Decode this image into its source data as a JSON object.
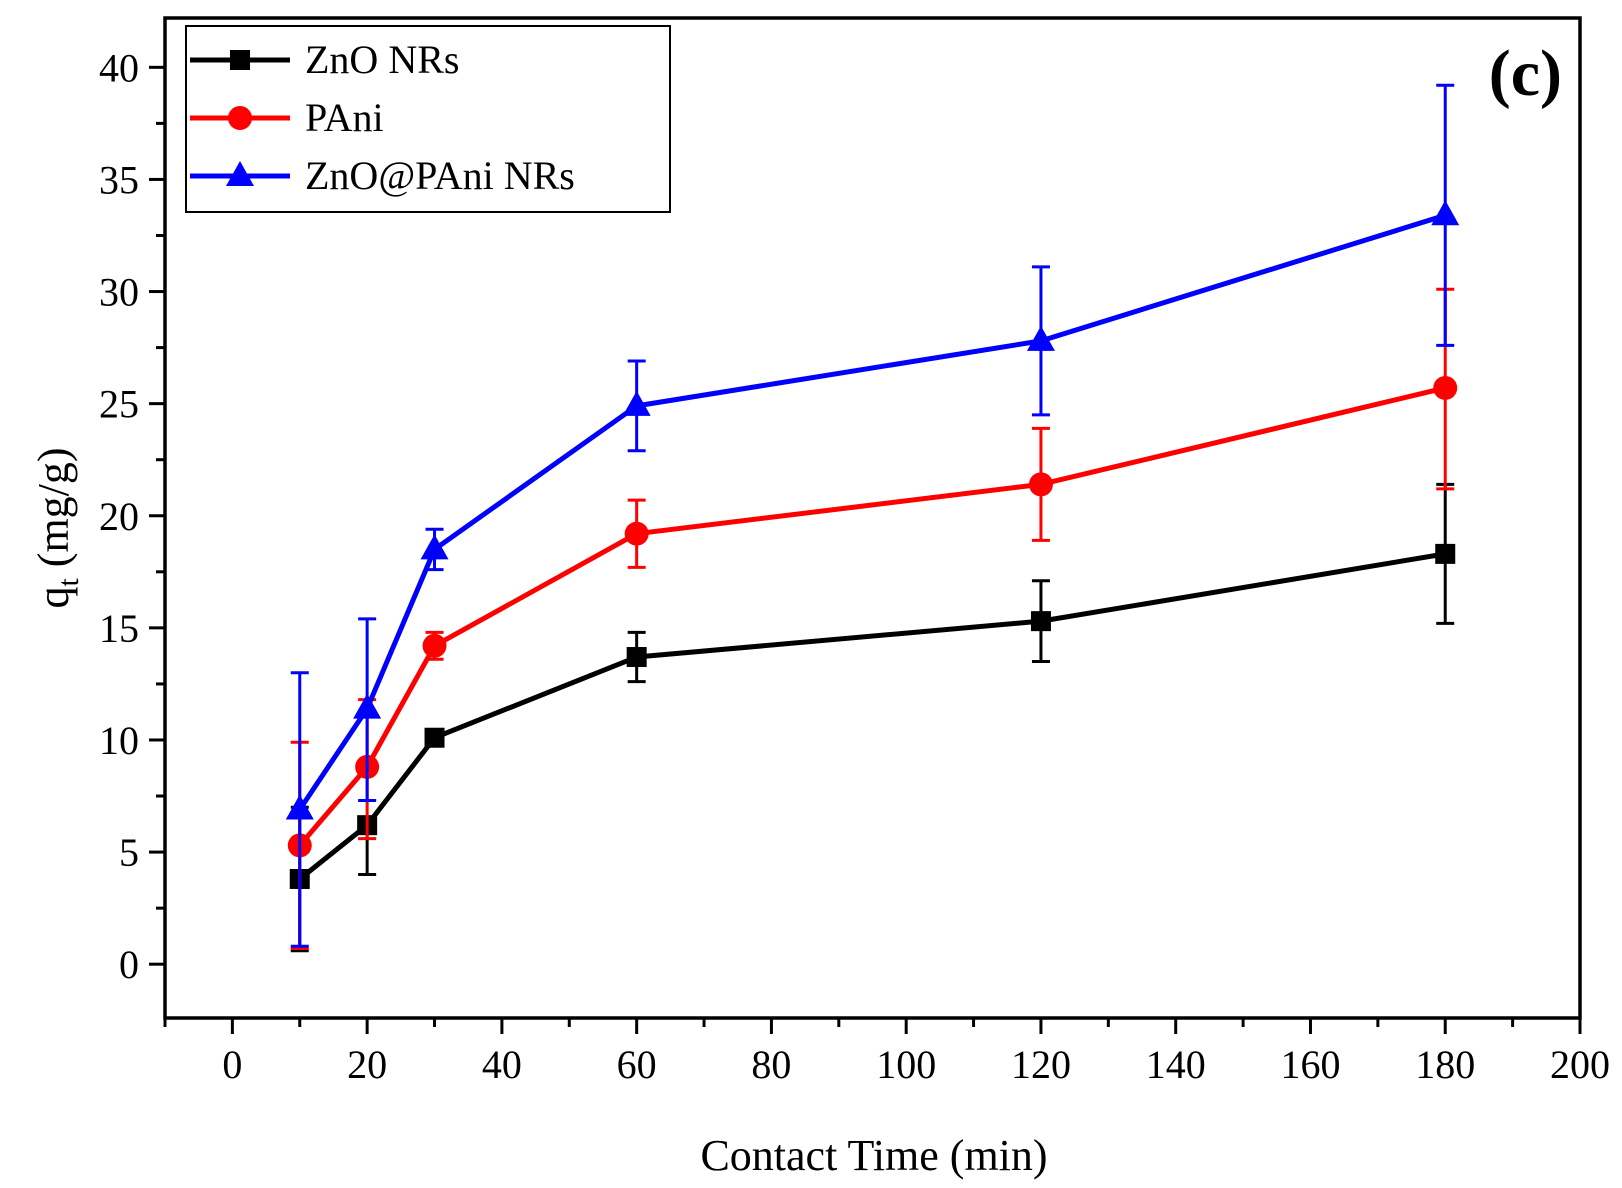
{
  "chart_data": {
    "type": "line",
    "panel_label": "(c)",
    "xlabel": "Contact Time (min)",
    "ylabel_main": "q",
    "ylabel_sub": "t",
    "ylabel_unit": " (mg/g)",
    "xlim": [
      -10,
      200
    ],
    "ylim": [
      -2.4,
      42.2
    ],
    "x_ticks": [
      0,
      20,
      40,
      60,
      80,
      100,
      120,
      140,
      160,
      180,
      200
    ],
    "y_ticks": [
      0,
      5,
      10,
      15,
      20,
      25,
      30,
      35,
      40
    ],
    "x_minor_step": 10,
    "y_minor_step": 2.5,
    "legend_position": "top-left",
    "x": [
      10,
      20,
      30,
      60,
      120,
      180
    ],
    "series": [
      {
        "name": "ZnO NRs",
        "color": "#000000",
        "marker": "square",
        "values": [
          3.8,
          6.2,
          10.1,
          13.7,
          15.3,
          18.3
        ],
        "err_upper": [
          7.0,
          6.2,
          10.1,
          14.8,
          17.1,
          21.4
        ],
        "err_lower": [
          0.6,
          4.0,
          10.1,
          12.6,
          13.5,
          15.2
        ]
      },
      {
        "name": "PAni",
        "color": "#ff0000",
        "marker": "circle",
        "values": [
          5.3,
          8.8,
          14.2,
          19.2,
          21.4,
          25.7
        ],
        "err_upper": [
          9.9,
          11.8,
          14.8,
          20.7,
          23.9,
          30.1
        ],
        "err_lower": [
          0.7,
          5.6,
          13.6,
          17.7,
          18.9,
          21.2
        ]
      },
      {
        "name": "ZnO@PAni NRs",
        "color": "#0000ff",
        "marker": "triangle",
        "values": [
          6.9,
          11.4,
          18.5,
          24.9,
          27.8,
          33.4
        ],
        "err_upper": [
          13.0,
          15.4,
          19.4,
          26.9,
          31.1,
          39.2
        ],
        "err_lower": [
          0.8,
          7.3,
          17.6,
          22.9,
          24.5,
          27.6
        ]
      }
    ]
  }
}
